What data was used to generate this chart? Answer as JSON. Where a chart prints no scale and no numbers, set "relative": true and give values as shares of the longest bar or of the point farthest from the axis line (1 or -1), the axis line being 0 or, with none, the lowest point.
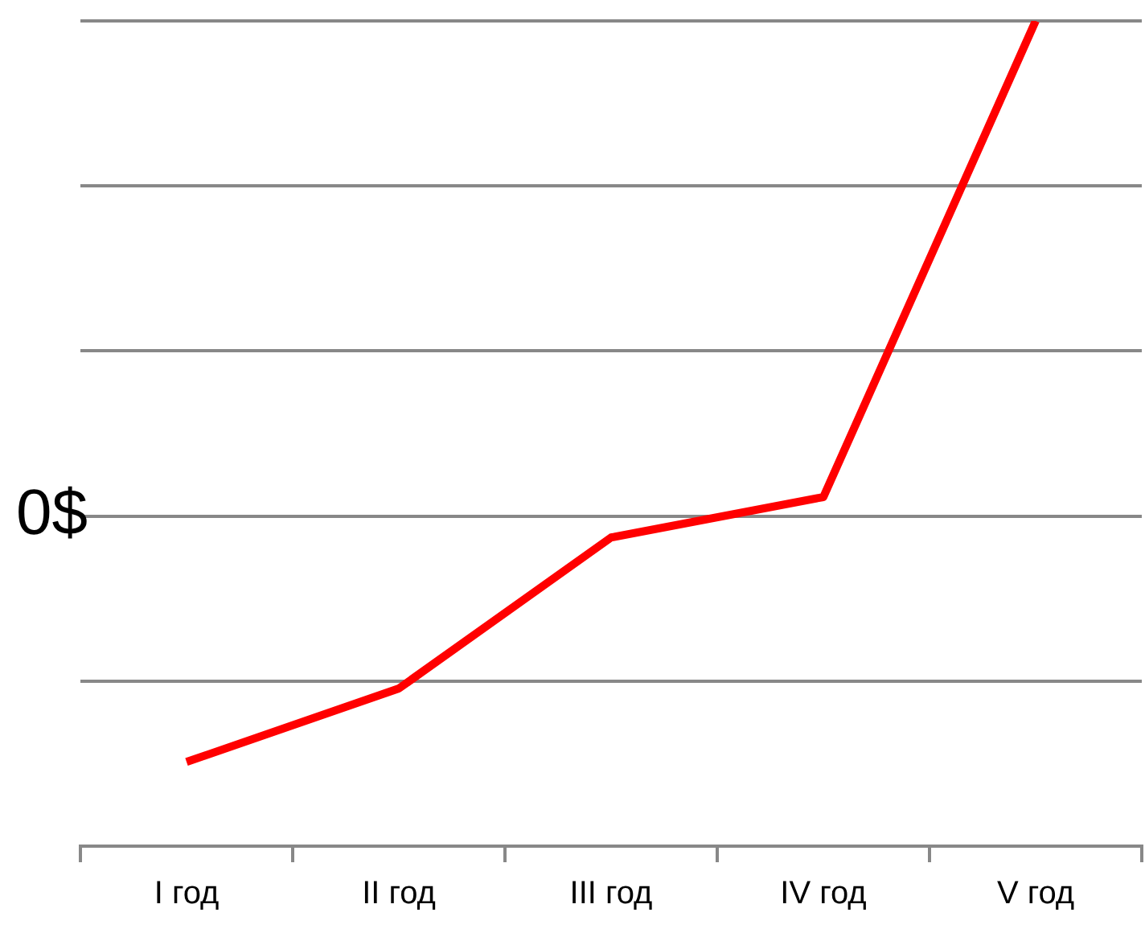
{
  "chart_data": {
    "type": "line",
    "relative": true,
    "ylabel": "0$",
    "categories": [
      "I год",
      "II год",
      "III год",
      "IV год",
      "V год"
    ],
    "series": [
      {
        "color": "#ff0000",
        "values": [
          0.102,
          0.191,
          0.374,
          0.423,
          1.0
        ]
      }
    ],
    "grid": "y",
    "legend": false,
    "marker": "none",
    "line_style": "solid"
  }
}
